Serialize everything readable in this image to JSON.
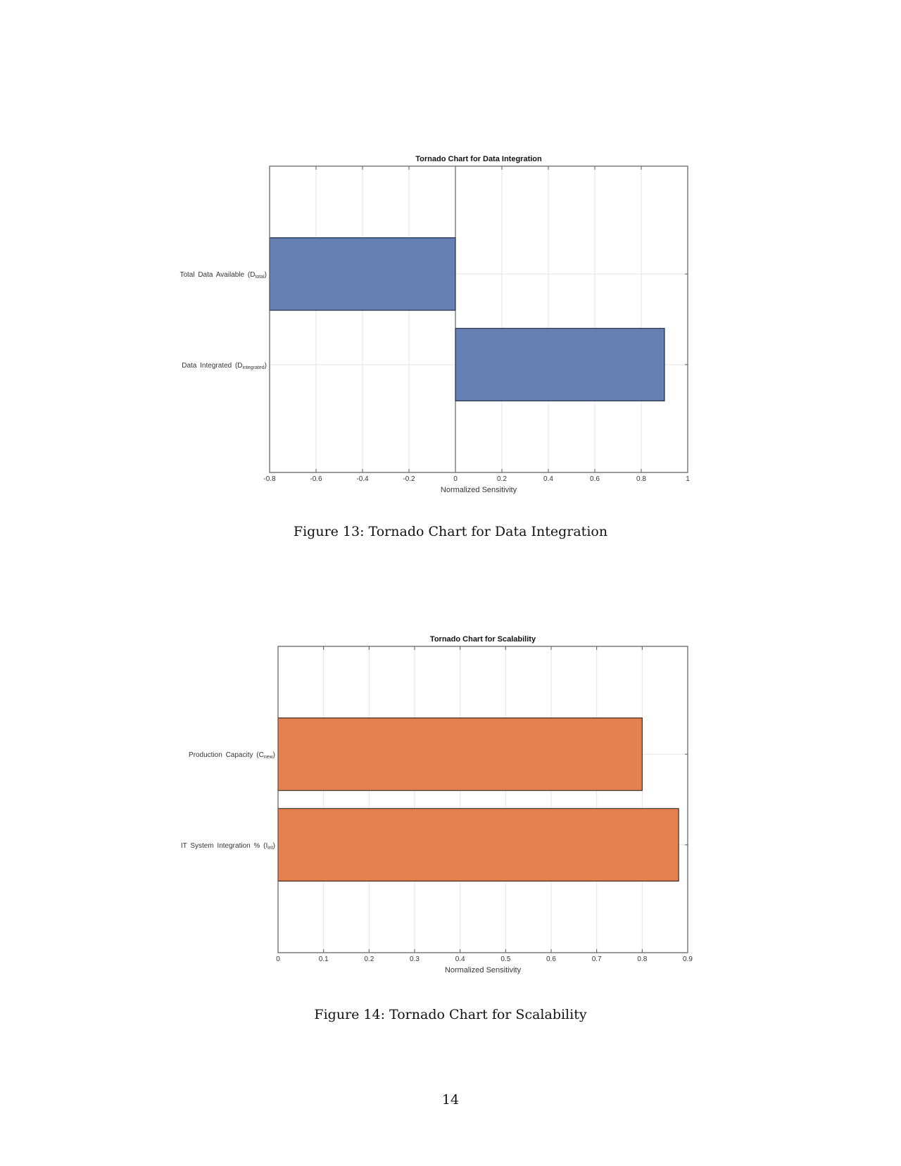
{
  "chart_data": [
    {
      "type": "bar",
      "orientation": "horizontal",
      "title": "Tornado Chart for Data Integration",
      "xlabel": "Normalized Sensitivity",
      "ylabel": "",
      "xlim": [
        -0.8,
        1
      ],
      "xticks": [
        "-0.8",
        "-0.6",
        "-0.4",
        "-0.2",
        "0",
        "0.2",
        "0.4",
        "0.6",
        "0.8",
        "1"
      ],
      "grid": true,
      "categories": [
        {
          "main": "Total Data Available (D",
          "sub": "total",
          "end": ")"
        },
        {
          "main": "Data Integrated (D",
          "sub": "integrated",
          "end": ")"
        }
      ],
      "values": [
        -0.8,
        0.9
      ],
      "color": "#6680b3",
      "edge": "#1e2b47"
    },
    {
      "type": "bar",
      "orientation": "horizontal",
      "title": "Tornado Chart for Scalability",
      "xlabel": "Normalized Sensitivity",
      "ylabel": "",
      "xlim": [
        0,
        0.9
      ],
      "xticks": [
        "0",
        "0.1",
        "0.2",
        "0.3",
        "0.4",
        "0.5",
        "0.6",
        "0.7",
        "0.8",
        "0.9"
      ],
      "grid": true,
      "categories": [
        {
          "main": "Production Capacity (C",
          "sub": "new",
          "end": ")"
        },
        {
          "main": "IT System Integration % (I",
          "sub": "int",
          "end": ")"
        }
      ],
      "values": [
        0.8,
        0.88
      ],
      "color": "#e5814f",
      "edge": "#3b2a20"
    }
  ],
  "captions": [
    "Figure 13: Tornado Chart for Data Integration",
    "Figure 14: Tornado Chart for Scalability"
  ],
  "page_number": "14"
}
